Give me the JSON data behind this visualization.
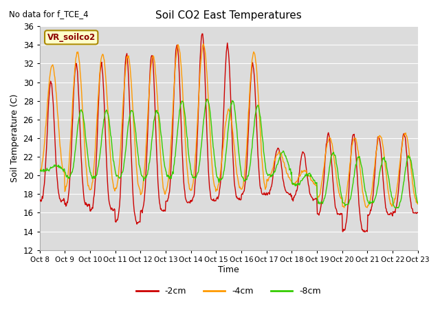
{
  "title": "Soil CO2 East Temperatures",
  "subtitle": "No data for f_TCE_4",
  "ylabel": "Soil Temperature (C)",
  "xlabel": "Time",
  "ylim": [
    12,
    36
  ],
  "yticks": [
    12,
    14,
    16,
    18,
    20,
    22,
    24,
    26,
    28,
    30,
    32,
    34,
    36
  ],
  "bg_color": "#dcdcdc",
  "legend_label": "VR_soilco2",
  "series_colors": {
    "-2cm": "#cc0000",
    "-4cm": "#ff9900",
    "-8cm": "#33cc00"
  },
  "xtick_labels": [
    "Oct 8",
    "Oct 9",
    "Oct 10",
    "Oct 11",
    "Oct 12",
    "Oct 13",
    "Oct 14",
    "Oct 15",
    "Oct 16",
    "Oct 17",
    "Oct 18",
    "Oct 19",
    "Oct 20",
    "Oct 21",
    "Oct 22",
    "Oct 23"
  ]
}
